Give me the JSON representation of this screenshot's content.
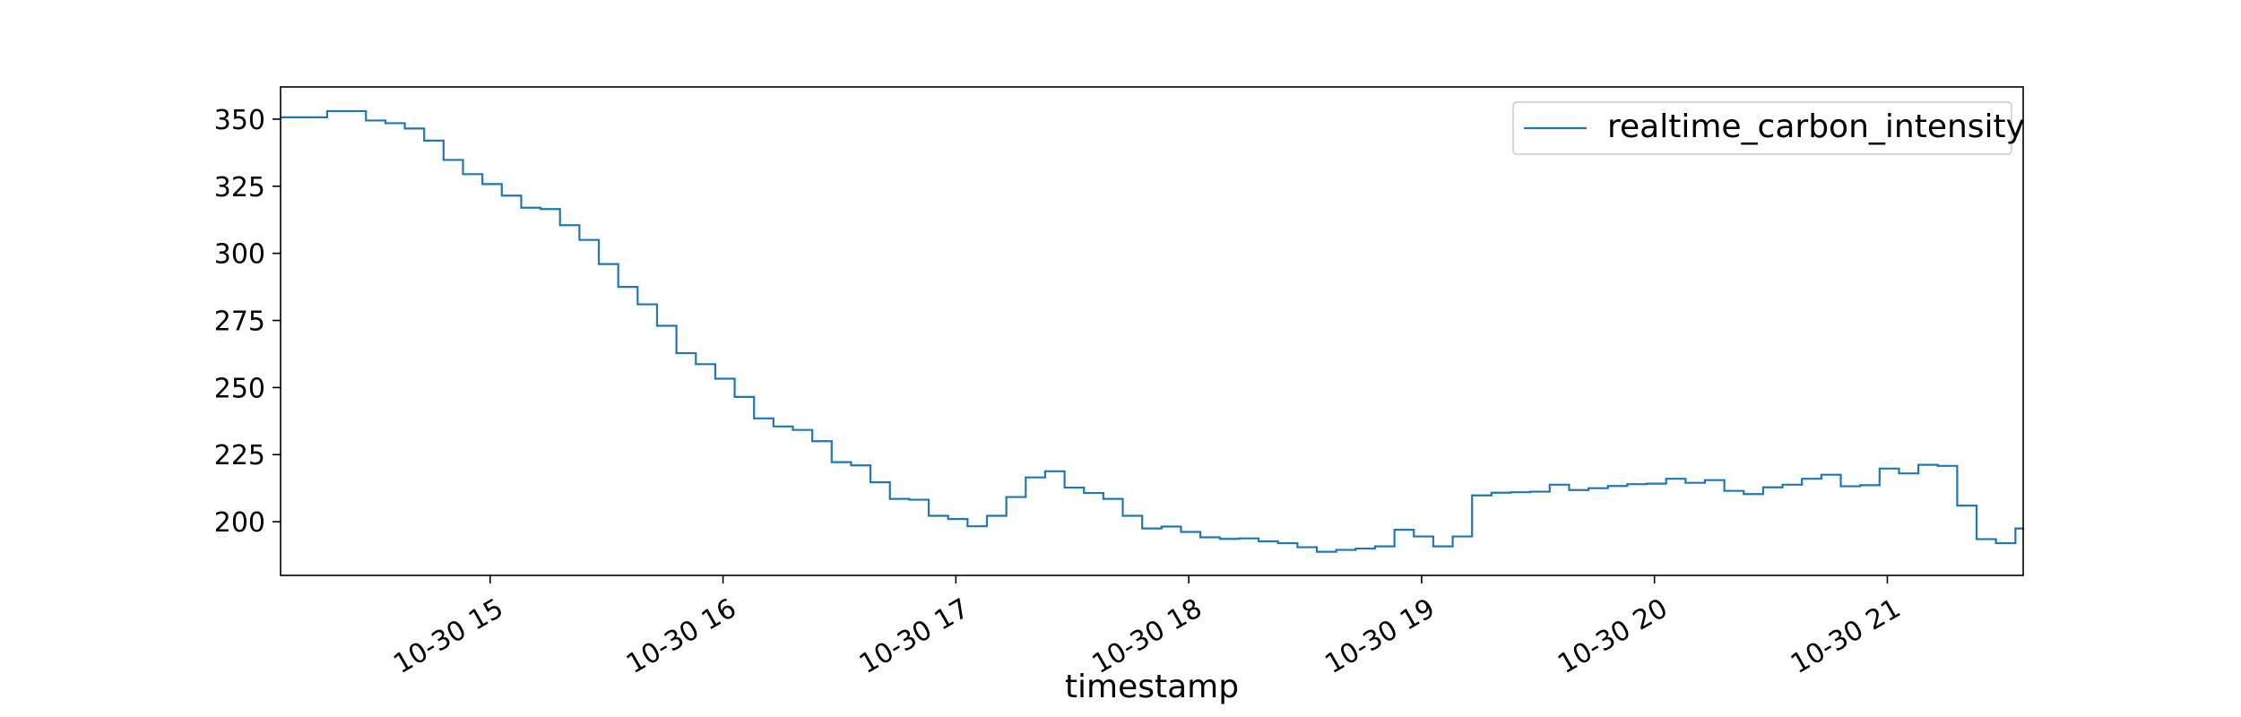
{
  "chart_data": {
    "type": "line",
    "title": "",
    "xlabel": "timestamp",
    "ylabel": "",
    "x_ticks": [
      "10-30 15",
      "10-30 16",
      "10-30 17",
      "10-30 18",
      "10-30 19",
      "10-30 20",
      "10-30 21"
    ],
    "y_ticks": [
      200,
      225,
      250,
      275,
      300,
      325,
      350
    ],
    "xlim": [
      "2023-10-30 14:06",
      "2023-10-30 21:35"
    ],
    "ylim": [
      180,
      362
    ],
    "grid": false,
    "legend": "top-right",
    "series": [
      {
        "name": "realtime_carbon_intensity",
        "color": "#1f77b4",
        "step": "post",
        "points": [
          [
            "14:06",
            350.7
          ],
          [
            "14:18",
            353.0
          ],
          [
            "14:28",
            349.5
          ],
          [
            "14:33",
            348.5
          ],
          [
            "14:38",
            346.5
          ],
          [
            "14:43",
            342.0
          ],
          [
            "14:48",
            334.8
          ],
          [
            "14:53",
            329.5
          ],
          [
            "14:58",
            325.8
          ],
          [
            "15:03",
            321.5
          ],
          [
            "15:08",
            317.0
          ],
          [
            "15:13",
            316.5
          ],
          [
            "15:18",
            310.5
          ],
          [
            "15:23",
            305.0
          ],
          [
            "15:28",
            296.0
          ],
          [
            "15:33",
            287.5
          ],
          [
            "15:38",
            281.0
          ],
          [
            "15:43",
            273.0
          ],
          [
            "15:48",
            262.8
          ],
          [
            "15:53",
            258.7
          ],
          [
            "15:58",
            253.3
          ],
          [
            "16:03",
            246.5
          ],
          [
            "16:08",
            238.5
          ],
          [
            "16:13",
            235.5
          ],
          [
            "16:18",
            234.2
          ],
          [
            "16:23",
            230.0
          ],
          [
            "16:28",
            222.2
          ],
          [
            "16:33",
            221.0
          ],
          [
            "16:38",
            214.7
          ],
          [
            "16:43",
            208.5
          ],
          [
            "16:48",
            208.2
          ],
          [
            "16:53",
            202.2
          ],
          [
            "16:58",
            201.0
          ],
          [
            "17:03",
            198.3
          ],
          [
            "17:08",
            202.2
          ],
          [
            "17:13",
            209.2
          ],
          [
            "17:18",
            216.5
          ],
          [
            "17:23",
            218.8
          ],
          [
            "17:28",
            212.7
          ],
          [
            "17:33",
            210.7
          ],
          [
            "17:38",
            208.5
          ],
          [
            "17:43",
            202.2
          ],
          [
            "17:48",
            197.5
          ],
          [
            "17:53",
            198.2
          ],
          [
            "17:58",
            196.2
          ],
          [
            "18:03",
            194.2
          ],
          [
            "18:08",
            193.6
          ],
          [
            "18:13",
            193.8
          ],
          [
            "18:18",
            192.7
          ],
          [
            "18:23",
            192.0
          ],
          [
            "18:28",
            190.5
          ],
          [
            "18:33",
            188.8
          ],
          [
            "18:38",
            189.5
          ],
          [
            "18:43",
            190.0
          ],
          [
            "18:48",
            190.8
          ],
          [
            "18:53",
            197.0
          ],
          [
            "18:58",
            194.5
          ],
          [
            "19:03",
            190.8
          ],
          [
            "19:08",
            194.5
          ],
          [
            "19:13",
            209.8
          ],
          [
            "19:18",
            210.8
          ],
          [
            "19:23",
            211.0
          ],
          [
            "19:28",
            211.2
          ],
          [
            "19:33",
            213.8
          ],
          [
            "19:38",
            211.8
          ],
          [
            "19:43",
            212.5
          ],
          [
            "19:48",
            213.3
          ],
          [
            "19:53",
            214.0
          ],
          [
            "19:58",
            214.2
          ],
          [
            "20:03",
            216.0
          ],
          [
            "20:08",
            214.5
          ],
          [
            "20:13",
            215.5
          ],
          [
            "20:18",
            211.5
          ],
          [
            "20:23",
            210.3
          ],
          [
            "20:28",
            212.8
          ],
          [
            "20:33",
            213.8
          ],
          [
            "20:38",
            216.0
          ],
          [
            "20:43",
            217.5
          ],
          [
            "20:48",
            213.2
          ],
          [
            "20:53",
            213.6
          ],
          [
            "20:58",
            219.8
          ],
          [
            "21:03",
            218.0
          ],
          [
            "21:08",
            221.2
          ],
          [
            "21:13",
            220.8
          ],
          [
            "21:18",
            206.0
          ],
          [
            "21:23",
            193.5
          ],
          [
            "21:28",
            192.0
          ],
          [
            "21:33",
            197.5
          ],
          [
            "21:35",
            197.0
          ]
        ]
      }
    ]
  }
}
